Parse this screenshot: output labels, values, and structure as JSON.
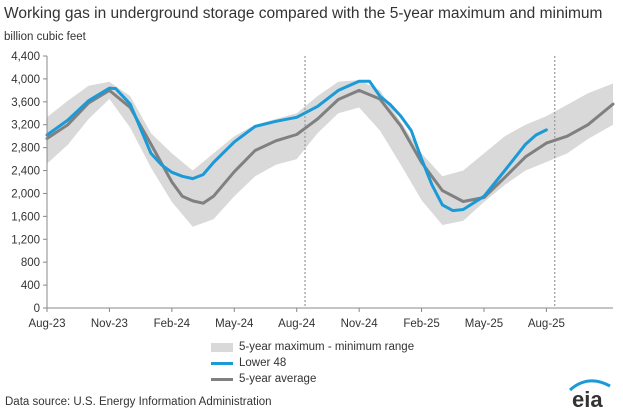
{
  "header": {
    "title": "Working gas in underground  storage compared with the 5-year maximum and minimum",
    "units": "billion cubic feet"
  },
  "legend": {
    "band_label": "5-year maximum - minimum range",
    "lower48_label": "Lower 48",
    "avg_label": "5-year average"
  },
  "footer": {
    "source": "Data source:  U.S. Energy Information Administration",
    "logo_text": "eia"
  },
  "colors": {
    "band": "#d9d9d9",
    "lower48": "#1a9ad6",
    "average": "#808080",
    "axis": "#888888"
  },
  "chart_data": {
    "type": "line",
    "ylabel": "billion cubic feet",
    "ylim": [
      0,
      4400
    ],
    "yticks": [
      0,
      400,
      800,
      1200,
      1600,
      2000,
      2400,
      2800,
      3200,
      3600,
      4000,
      4400
    ],
    "ytick_labels": [
      "0",
      "400",
      "800",
      "1,200",
      "1,600",
      "2,000",
      "2,400",
      "2,800",
      "3,200",
      "3,600",
      "4,000",
      "4,400"
    ],
    "xtick_labels": [
      "Aug-23",
      "Nov-23",
      "Feb-24",
      "May-24",
      "Aug-24",
      "Nov-24",
      "Feb-25",
      "May-25",
      "Aug-25"
    ],
    "xtick_months": [
      0,
      3,
      6,
      9,
      12,
      15,
      18,
      21,
      24
    ],
    "x_range_months": [
      0,
      27.2
    ],
    "vertical_markers_months": [
      12.4,
      24.4
    ],
    "series": [
      {
        "name": "5-year maximum - minimum range",
        "kind": "band",
        "months": [
          0,
          1,
          2,
          3,
          4,
          5,
          6,
          7,
          8,
          9,
          10,
          11,
          12,
          13,
          14,
          15,
          16,
          17,
          18,
          19,
          20,
          21,
          22,
          23,
          24,
          25,
          26,
          27.2
        ],
        "max": [
          3330,
          3620,
          3880,
          3950,
          3700,
          3050,
          2700,
          2400,
          2700,
          3000,
          3200,
          3300,
          3400,
          3700,
          3950,
          3980,
          3800,
          3250,
          2700,
          2300,
          2400,
          2700,
          3000,
          3200,
          3350,
          3550,
          3750,
          3920
        ],
        "min": [
          2520,
          2850,
          3300,
          3650,
          3150,
          2450,
          1850,
          1420,
          1550,
          1950,
          2300,
          2500,
          2600,
          3050,
          3400,
          3500,
          3100,
          2500,
          1880,
          1450,
          1520,
          1850,
          2150,
          2400,
          2550,
          2700,
          2950,
          3200
        ]
      },
      {
        "name": "Lower 48",
        "kind": "line",
        "months": [
          0,
          1,
          2,
          3,
          3.3,
          4,
          5,
          5.5,
          6,
          6.5,
          7,
          7.5,
          8,
          9,
          10,
          11,
          12,
          13,
          14,
          15,
          15.5,
          16,
          16.5,
          17,
          17.5,
          18,
          18.5,
          19,
          19.5,
          20,
          21,
          22,
          23,
          23.5,
          24
        ],
        "values": [
          3020,
          3280,
          3620,
          3840,
          3830,
          3560,
          2700,
          2500,
          2370,
          2300,
          2260,
          2330,
          2540,
          2900,
          3170,
          3260,
          3330,
          3520,
          3800,
          3960,
          3960,
          3700,
          3550,
          3350,
          3100,
          2600,
          2150,
          1800,
          1700,
          1720,
          1950,
          2400,
          2860,
          3020,
          3110
        ]
      },
      {
        "name": "5-year average",
        "kind": "line",
        "months": [
          0,
          1,
          2,
          3,
          4,
          5,
          6,
          6.5,
          7,
          7.5,
          8,
          9,
          10,
          11,
          12,
          13,
          14,
          15,
          16,
          17,
          18,
          19,
          20,
          21,
          22,
          23,
          24,
          25,
          26,
          27.2
        ],
        "values": [
          2960,
          3200,
          3580,
          3800,
          3500,
          2860,
          2200,
          1950,
          1870,
          1830,
          1950,
          2380,
          2750,
          2920,
          3030,
          3300,
          3640,
          3800,
          3650,
          3180,
          2540,
          2050,
          1860,
          1930,
          2280,
          2640,
          2880,
          3000,
          3200,
          3560
        ]
      }
    ]
  }
}
